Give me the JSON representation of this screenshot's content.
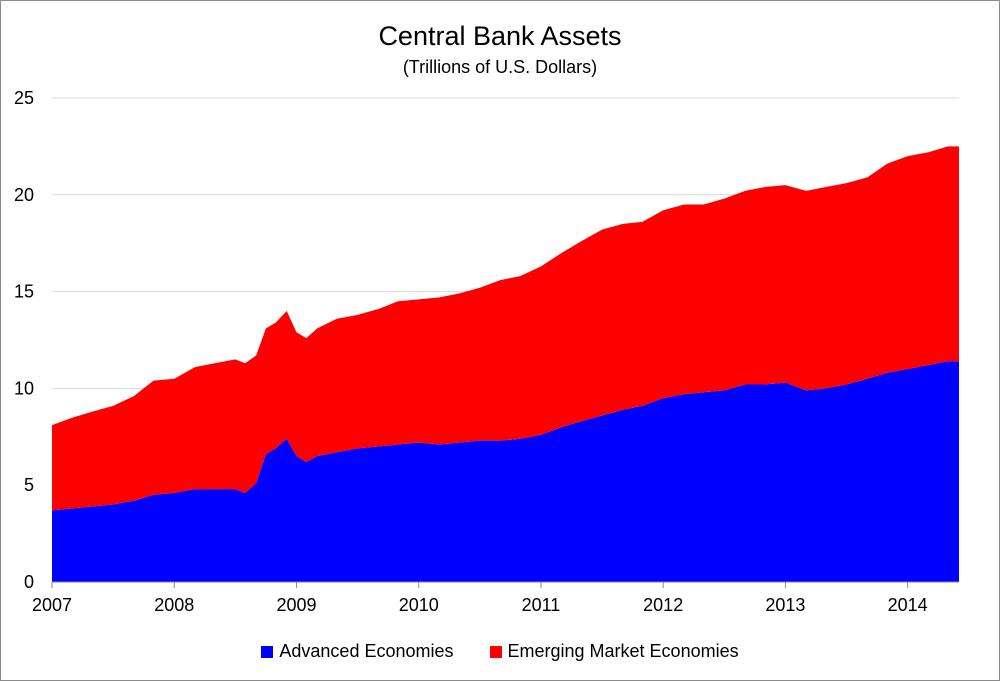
{
  "chart_data": {
    "type": "area",
    "stacked": true,
    "title": "Central Bank Assets",
    "subtitle": "(Trillions of U.S. Dollars)",
    "xlabel": "",
    "ylabel": "",
    "xlim": [
      2007.0,
      2014.42
    ],
    "ylim": [
      0,
      25
    ],
    "y_ticks": [
      0,
      5,
      10,
      15,
      20,
      25
    ],
    "x_ticks": [
      2007,
      2008,
      2009,
      2010,
      2011,
      2012,
      2013,
      2014
    ],
    "grid": true,
    "legend": "bottom",
    "x": [
      2007.0,
      2007.17,
      2007.33,
      2007.5,
      2007.67,
      2007.83,
      2008.0,
      2008.17,
      2008.33,
      2008.5,
      2008.58,
      2008.67,
      2008.75,
      2008.83,
      2008.92,
      2009.0,
      2009.08,
      2009.17,
      2009.33,
      2009.5,
      2009.67,
      2009.83,
      2010.0,
      2010.17,
      2010.33,
      2010.5,
      2010.67,
      2010.83,
      2011.0,
      2011.17,
      2011.33,
      2011.5,
      2011.67,
      2011.83,
      2012.0,
      2012.17,
      2012.33,
      2012.5,
      2012.67,
      2012.83,
      2013.0,
      2013.17,
      2013.33,
      2013.5,
      2013.67,
      2013.83,
      2014.0,
      2014.17,
      2014.33,
      2014.42
    ],
    "series": [
      {
        "name": "Advanced Economies",
        "color": "#0000ff",
        "values": [
          3.7,
          3.8,
          3.9,
          4.0,
          4.2,
          4.5,
          4.6,
          4.8,
          4.8,
          4.8,
          4.6,
          5.1,
          6.6,
          6.9,
          7.4,
          6.5,
          6.2,
          6.5,
          6.7,
          6.9,
          7.0,
          7.1,
          7.2,
          7.1,
          7.2,
          7.3,
          7.3,
          7.4,
          7.6,
          8.0,
          8.3,
          8.6,
          8.9,
          9.1,
          9.5,
          9.7,
          9.8,
          9.9,
          10.2,
          10.2,
          10.3,
          9.9,
          10.0,
          10.2,
          10.5,
          10.8,
          11.0,
          11.2,
          11.4,
          11.4
        ]
      },
      {
        "name": "Emerging Market Economies",
        "color": "#ff0000",
        "values": [
          4.4,
          4.7,
          4.9,
          5.1,
          5.4,
          5.9,
          5.9,
          6.3,
          6.5,
          6.7,
          6.7,
          6.6,
          6.5,
          6.5,
          6.6,
          6.4,
          6.4,
          6.6,
          6.9,
          6.9,
          7.1,
          7.4,
          7.4,
          7.6,
          7.7,
          7.9,
          8.3,
          8.4,
          8.7,
          9.0,
          9.3,
          9.6,
          9.6,
          9.5,
          9.7,
          9.8,
          9.7,
          9.9,
          10.0,
          10.2,
          10.2,
          10.3,
          10.4,
          10.4,
          10.4,
          10.8,
          11.0,
          11.0,
          11.1,
          11.1
        ]
      }
    ]
  }
}
